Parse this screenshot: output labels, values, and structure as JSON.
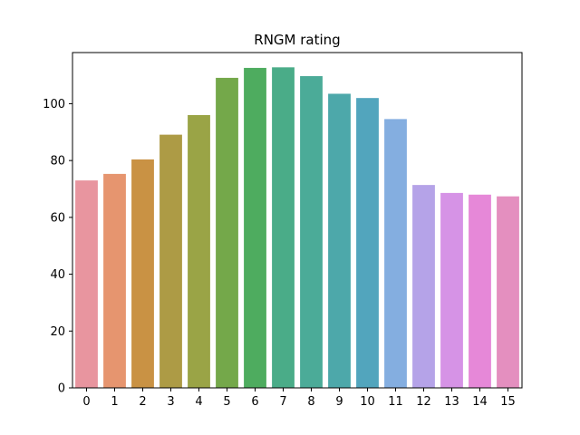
{
  "chart_data": {
    "type": "bar",
    "title": "RNGM rating",
    "xlabel": "",
    "ylabel": "",
    "categories": [
      "0",
      "1",
      "2",
      "3",
      "4",
      "5",
      "6",
      "7",
      "8",
      "9",
      "10",
      "11",
      "12",
      "13",
      "14",
      "15"
    ],
    "values": [
      73.0,
      75.3,
      80.4,
      89.1,
      96.0,
      109.1,
      112.6,
      112.8,
      109.7,
      103.5,
      102.0,
      94.6,
      71.4,
      68.6,
      68.0,
      67.4
    ],
    "colors": [
      "#e8959f",
      "#e6956f",
      "#c99244",
      "#ad9b45",
      "#9aa446",
      "#74a84a",
      "#4eac5f",
      "#4aac88",
      "#4bab98",
      "#4da8aa",
      "#52a5bd",
      "#84aee0",
      "#b5a3e8",
      "#d693e6",
      "#e688d8",
      "#e48fbf"
    ],
    "ylim": [
      0,
      118
    ],
    "yticks": [
      0,
      20,
      40,
      60,
      80,
      100
    ],
    "grid": false,
    "legend": "none"
  }
}
